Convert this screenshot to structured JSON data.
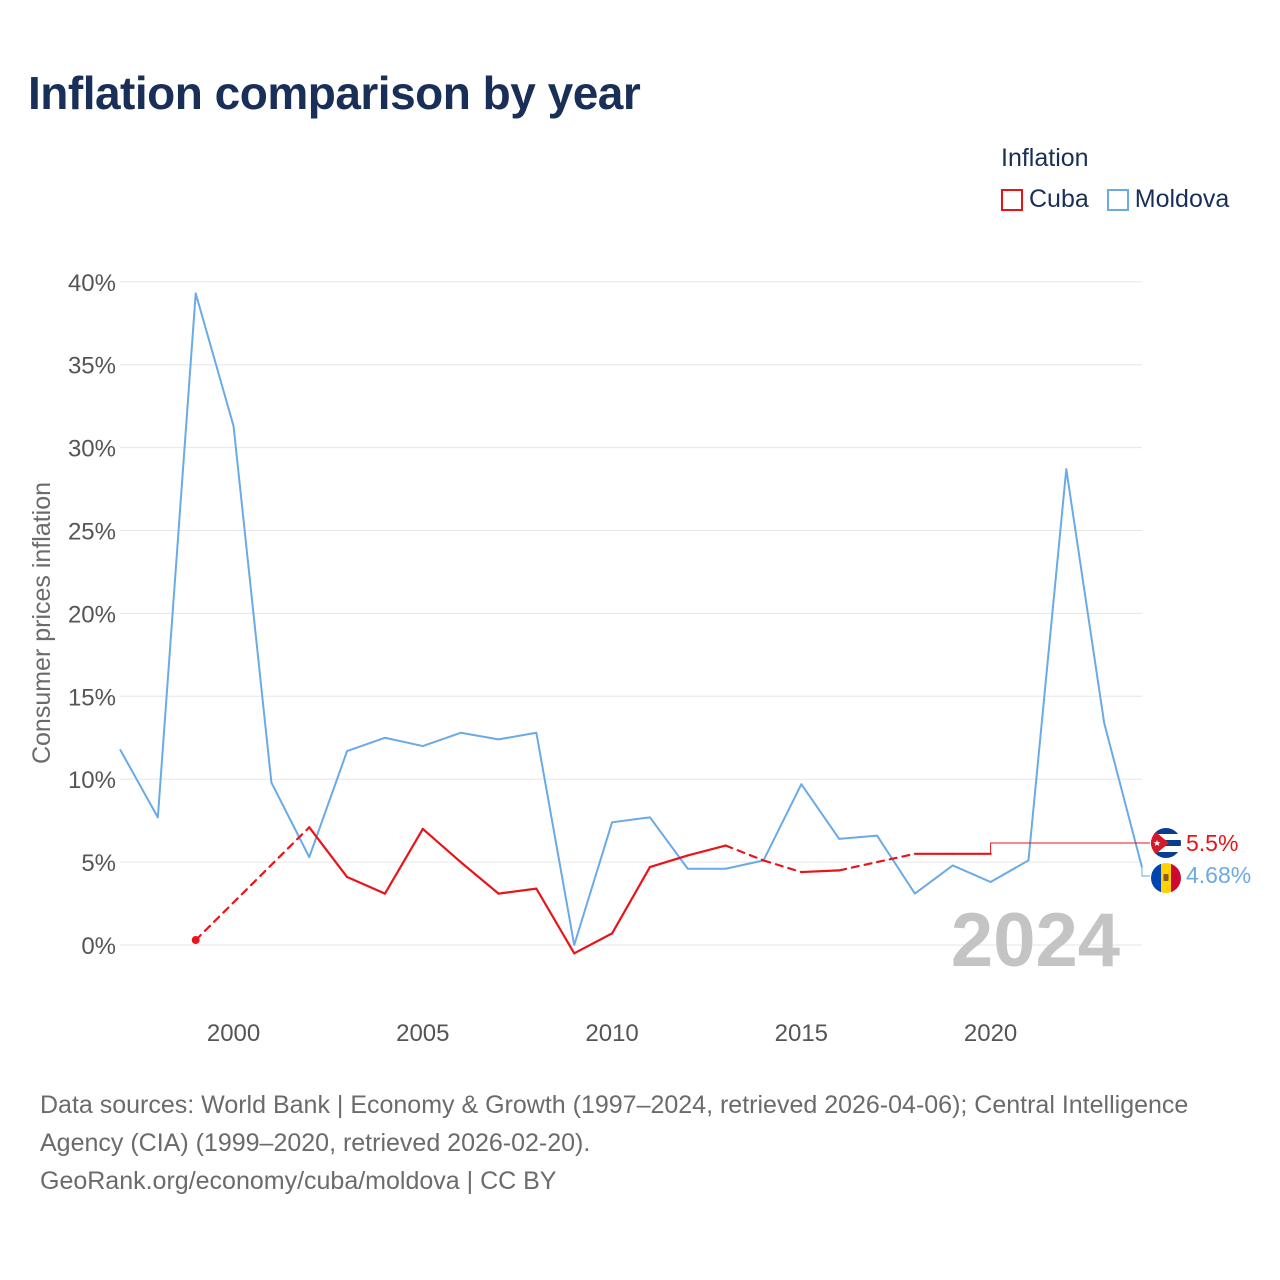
{
  "title": "Inflation comparison by year",
  "legend": {
    "title": "Inflation",
    "items": [
      {
        "label": "Cuba",
        "color": "#e8141a"
      },
      {
        "label": "Moldova",
        "color": "#6aaae6"
      }
    ]
  },
  "year_watermark": "2024",
  "end_labels": {
    "cuba": "5.5%",
    "moldova": "4.68%"
  },
  "footer": {
    "sources": "Data sources: World Bank | Economy & Growth (1997–2024, retrieved 2026-04-06); Central Intelligence Agency (CIA) (1999–2020, retrieved 2026-02-20).",
    "credit": "GeoRank.org/economy/cuba/moldova | CC BY"
  },
  "chart_data": {
    "type": "line",
    "title": "Inflation comparison by year",
    "xlabel": "",
    "ylabel": "Consumer prices inflation",
    "xlim": [
      1997,
      2024
    ],
    "ylim": [
      -3.5,
      40
    ],
    "x_ticks": [
      2000,
      2005,
      2010,
      2015,
      2020
    ],
    "y_ticks": [
      0,
      5,
      10,
      15,
      20,
      25,
      30,
      35,
      40
    ],
    "y_tick_labels": [
      "0%",
      "5%",
      "10%",
      "15%",
      "20%",
      "25%",
      "30%",
      "35%",
      "40%"
    ],
    "grid": true,
    "legend_position": "top-right",
    "series": [
      {
        "name": "Moldova",
        "color": "#6aaae6",
        "points": [
          [
            1997,
            11.8
          ],
          [
            1998,
            7.7
          ],
          [
            1999,
            39.3
          ],
          [
            2000,
            31.3
          ],
          [
            2001,
            9.8
          ],
          [
            2002,
            5.3
          ],
          [
            2003,
            11.7
          ],
          [
            2004,
            12.5
          ],
          [
            2005,
            12.0
          ],
          [
            2006,
            12.8
          ],
          [
            2007,
            12.4
          ],
          [
            2008,
            12.8
          ],
          [
            2009,
            0.0
          ],
          [
            2010,
            7.4
          ],
          [
            2011,
            7.7
          ],
          [
            2012,
            4.6
          ],
          [
            2013,
            4.6
          ],
          [
            2014,
            5.1
          ],
          [
            2015,
            9.7
          ],
          [
            2016,
            6.4
          ],
          [
            2017,
            6.6
          ],
          [
            2018,
            3.1
          ],
          [
            2019,
            4.8
          ],
          [
            2020,
            3.8
          ],
          [
            2021,
            5.1
          ],
          [
            2022,
            28.7
          ],
          [
            2023,
            13.4
          ],
          [
            2024,
            4.68
          ]
        ]
      },
      {
        "name": "Cuba",
        "color": "#e8141a",
        "points": [
          [
            1999,
            0.3
          ],
          [
            2002,
            7.1
          ],
          [
            2003,
            4.1
          ],
          [
            2004,
            3.1
          ],
          [
            2005,
            7.0
          ],
          [
            2006,
            5.0
          ],
          [
            2007,
            3.1
          ],
          [
            2008,
            3.4
          ],
          [
            2009,
            -0.5
          ],
          [
            2010,
            0.7
          ],
          [
            2011,
            4.7
          ],
          [
            2012,
            5.4
          ],
          [
            2013,
            6.0
          ],
          [
            2014,
            5.1
          ],
          [
            2015,
            4.4
          ],
          [
            2016,
            4.5
          ],
          [
            2017,
            5.0
          ],
          [
            2018,
            5.5
          ],
          [
            2019,
            5.5
          ],
          [
            2020,
            5.5
          ]
        ],
        "dashed_segments": [
          [
            1999,
            2002
          ],
          [
            2013,
            2015
          ],
          [
            2016,
            2018
          ]
        ],
        "end_value": 5.5
      }
    ]
  }
}
